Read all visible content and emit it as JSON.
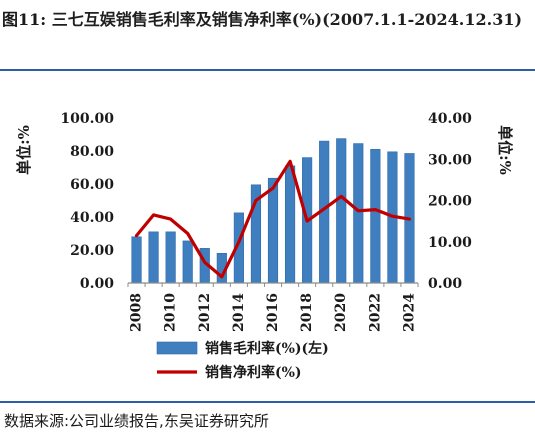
{
  "title": {
    "prefix": "图11:",
    "text": "三七互娱销售毛利率及销售净利率(%)(2007.1.1-2024.12.31)"
  },
  "source": "数据来源:公司业绩报告,东吴证券研究所",
  "chart_data": {
    "type": "bar+line",
    "x": [
      2008,
      2009,
      2010,
      2011,
      2012,
      2013,
      2014,
      2015,
      2016,
      2017,
      2018,
      2019,
      2020,
      2021,
      2022,
      2023,
      2024
    ],
    "x_tick_labels": [
      "2008",
      "2010",
      "2012",
      "2014",
      "2016",
      "2018",
      "2020",
      "2022",
      "2024"
    ],
    "left_axis": {
      "label": "单位:%",
      "ylim": [
        0,
        100
      ],
      "ticks": [
        "0.00",
        "20.00",
        "40.00",
        "60.00",
        "80.00",
        "100.00"
      ]
    },
    "right_axis": {
      "label": "单位:%",
      "ylim": [
        0,
        40
      ],
      "ticks": [
        "0.00",
        "10.00",
        "20.00",
        "30.00",
        "40.00"
      ]
    },
    "series": [
      {
        "name": "销售毛利率(%)(左)",
        "kind": "bar",
        "axis": "left",
        "color": "#3f7fc0",
        "values": [
          28.0,
          31.0,
          31.0,
          25.5,
          21.0,
          18.0,
          42.5,
          59.5,
          63.5,
          71.0,
          76.0,
          86.0,
          87.5,
          84.5,
          81.0,
          79.5,
          78.5
        ]
      },
      {
        "name": "销售净利率(%)",
        "kind": "line",
        "axis": "right",
        "color": "#c00000",
        "values": [
          11.5,
          16.5,
          15.5,
          12.0,
          5.0,
          1.5,
          10.0,
          20.0,
          23.0,
          29.5,
          15.0,
          18.0,
          21.0,
          17.5,
          17.8,
          16.2,
          15.5
        ]
      }
    ],
    "legend_position": "bottom",
    "grid": false
  }
}
